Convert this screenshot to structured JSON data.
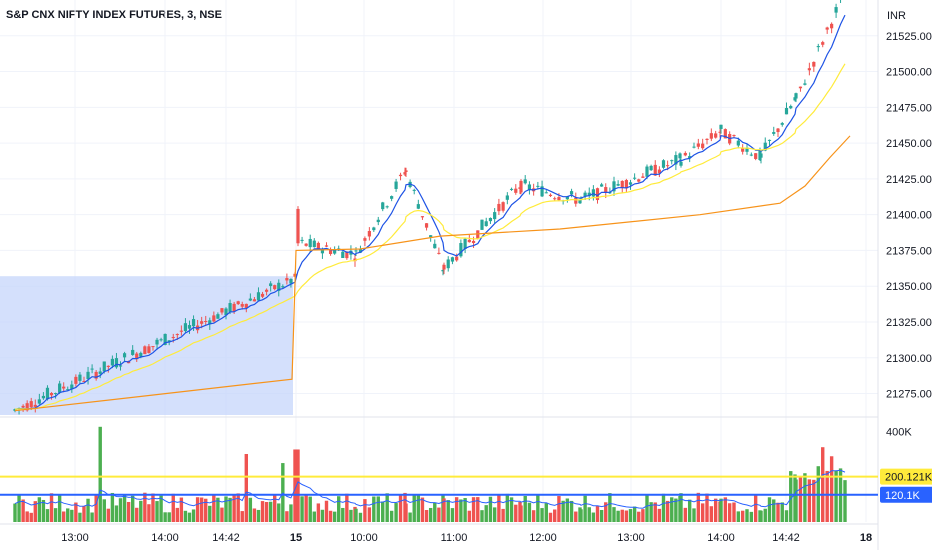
{
  "header": {
    "symbol_title": "S&P CNX NIFTY INDEX FUTURES, 3, NSE",
    "currency": "INR"
  },
  "colors": {
    "up": "#26a69a",
    "up_volume": "#4caf50",
    "down": "#ef5350",
    "ema_fast": "#1e53e5",
    "ema_slow": "#ffeb3b",
    "vwap": "#f7931a",
    "highlight": "#c5d6fb",
    "volume_ma_fast": "#2962ff",
    "volume_ma_slow": "#fdd835"
  },
  "chart_data": {
    "type": "candlestick",
    "price_axis": {
      "ticks": [
        "21525.00",
        "21500.00",
        "21475.00",
        "21450.00",
        "21425.00",
        "21400.00",
        "21375.00",
        "21350.00",
        "21325.00",
        "21300.00",
        "21275.00"
      ],
      "range": [
        21260,
        21550
      ]
    },
    "volume_axis": {
      "ticks": [
        "400K"
      ],
      "range": [
        0,
        450000
      ],
      "markers": [
        {
          "label": "200.121K",
          "value": 200121,
          "color": "#ffeb3b"
        },
        {
          "label": "120.1K",
          "value": 120100,
          "color": "#2962ff"
        }
      ]
    },
    "x_ticks": [
      "13:00",
      "14:00",
      "14:42",
      "15",
      "10:00",
      "11:00",
      "12:00",
      "13:00",
      "14:00",
      "14:42",
      "18"
    ],
    "sessions": [
      {
        "name": "day-1",
        "start_index": 0,
        "end_index": 70
      },
      {
        "name": "day-2",
        "start_index": 71,
        "end_index": 203
      }
    ],
    "segments": [
      {
        "x_start": 15,
        "x_end": 295,
        "price_start": 21263,
        "price_end": 21355,
        "n": 70
      },
      {
        "x_start": 298,
        "x_end": 355,
        "price_start": 21380,
        "price_end": 21372,
        "n": 15
      },
      {
        "x_start": 356,
        "x_end": 405,
        "price_start": 21372,
        "price_end": 21430,
        "n": 12
      },
      {
        "x_start": 406,
        "x_end": 443,
        "price_start": 21430,
        "price_end": 21362,
        "n": 10
      },
      {
        "x_start": 444,
        "x_end": 520,
        "price_start": 21362,
        "price_end": 21420,
        "n": 19
      },
      {
        "x_start": 521,
        "x_end": 580,
        "price_start": 21420,
        "price_end": 21410,
        "n": 15
      },
      {
        "x_start": 581,
        "x_end": 680,
        "price_start": 21410,
        "price_end": 21438,
        "n": 25
      },
      {
        "x_start": 681,
        "x_end": 720,
        "price_start": 21438,
        "price_end": 21458,
        "n": 10
      },
      {
        "x_start": 721,
        "x_end": 760,
        "price_start": 21458,
        "price_end": 21440,
        "n": 10
      },
      {
        "x_start": 761,
        "x_end": 795,
        "price_start": 21440,
        "price_end": 21480,
        "n": 9
      },
      {
        "x_start": 796,
        "x_end": 845,
        "price_start": 21480,
        "price_end": 21555,
        "n": 12
      }
    ],
    "vwap_levels": [
      [
        15,
        21263
      ],
      [
        292,
        21285
      ],
      [
        296,
        21375
      ],
      [
        360,
        21376
      ],
      [
        440,
        21385
      ],
      [
        560,
        21390
      ],
      [
        700,
        21400
      ],
      [
        780,
        21408
      ],
      [
        805,
        21420
      ],
      [
        830,
        21440
      ],
      [
        850,
        21455
      ]
    ],
    "volume_spikes": [
      {
        "x": 101,
        "value": 420000
      },
      {
        "x": 245,
        "value": 300000
      },
      {
        "x": 283,
        "value": 260000
      },
      {
        "x": 297,
        "value": 320000
      },
      {
        "x": 822,
        "value": 330000
      },
      {
        "x": 832,
        "value": 290000
      },
      {
        "x": 848,
        "value": 280000
      }
    ]
  }
}
